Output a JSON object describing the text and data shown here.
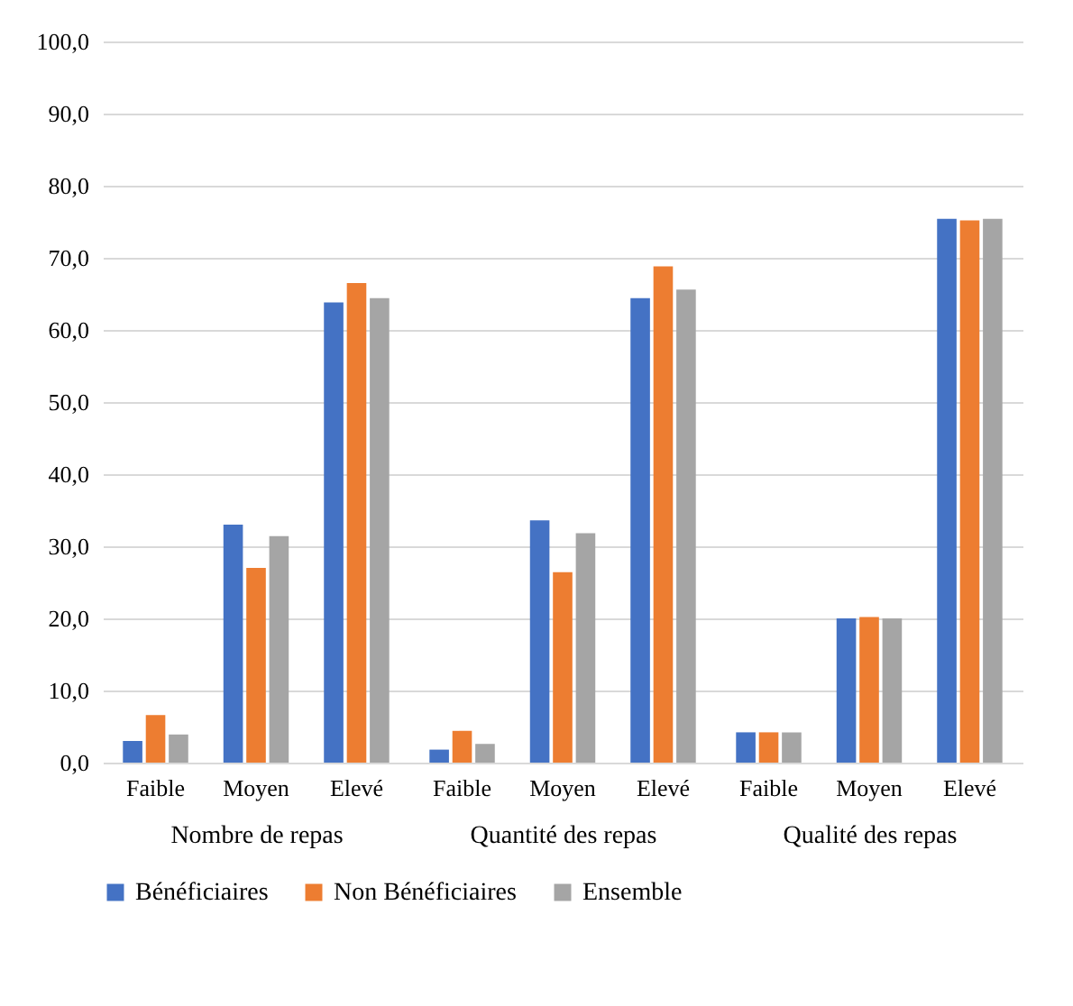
{
  "chart_data": [
    {
      "type": "bar",
      "xlabel": "Nombre de repas",
      "categories": [
        "Faible",
        "Moyen",
        "Elevé"
      ],
      "series": [
        {
          "name": "Bénéficiaires",
          "color": "#4472c4",
          "values": [
            3.0,
            33.0,
            63.8
          ]
        },
        {
          "name": "Non Bénéficiaires",
          "color": "#ed7d31",
          "values": [
            6.6,
            27.0,
            66.5
          ]
        },
        {
          "name": "Ensemble",
          "color": "#a5a5a5",
          "values": [
            3.9,
            31.4,
            64.4
          ]
        }
      ],
      "ylim": [
        0,
        100
      ],
      "yticks": [
        {
          "value": 0,
          "label": "0,0"
        },
        {
          "value": 10,
          "label": "10,0"
        },
        {
          "value": 20,
          "label": "20,0"
        },
        {
          "value": 30,
          "label": "30,0"
        },
        {
          "value": 40,
          "label": "40,0"
        },
        {
          "value": 50,
          "label": "50,0"
        },
        {
          "value": 60,
          "label": "60,0"
        },
        {
          "value": 70,
          "label": "70,0"
        },
        {
          "value": 80,
          "label": "80,0"
        },
        {
          "value": 90,
          "label": "90,0"
        },
        {
          "value": 100,
          "label": "100,0"
        }
      ],
      "grid": "y",
      "legend": "bottom"
    },
    {
      "type": "bar",
      "xlabel": "Quantité des repas",
      "categories": [
        "Faible",
        "Moyen",
        "Elevé"
      ],
      "series": [
        {
          "name": "Bénéficiaires",
          "color": "#4472c4",
          "values": [
            1.8,
            33.6,
            64.4
          ]
        },
        {
          "name": "Non Bénéficiaires",
          "color": "#ed7d31",
          "values": [
            4.4,
            26.4,
            68.8
          ]
        },
        {
          "name": "Ensemble",
          "color": "#a5a5a5",
          "values": [
            2.6,
            31.8,
            65.6
          ]
        }
      ],
      "ylim": [
        0,
        100
      ],
      "yticks": [
        {
          "value": 0,
          "label": null
        },
        {
          "value": 10,
          "label": null
        },
        {
          "value": 20,
          "label": null
        },
        {
          "value": 30,
          "label": null
        },
        {
          "value": 40,
          "label": null
        },
        {
          "value": 50,
          "label": null
        },
        {
          "value": 60,
          "label": null
        },
        {
          "value": 70,
          "label": null
        },
        {
          "value": 80,
          "label": null
        },
        {
          "value": 90,
          "label": null
        },
        {
          "value": 100,
          "label": null
        }
      ],
      "grid": "y",
      "legend": "bottom",
      "tick_labels": "x"
    },
    {
      "type": "bar",
      "xlabel": "Qualité des repas",
      "categories": [
        "Faible",
        "Moyen",
        "Elevé"
      ],
      "series": [
        {
          "name": "Bénéficiaires",
          "color": "#4472c4",
          "values": [
            4.2,
            20.0,
            75.4
          ]
        },
        {
          "name": "Non Bénéficiaires",
          "color": "#ed7d31",
          "values": [
            4.2,
            20.2,
            75.2
          ]
        },
        {
          "name": "Ensemble",
          "color": "#a5a5a5",
          "values": [
            4.2,
            20.0,
            75.4
          ]
        }
      ],
      "ylim": [
        0,
        100
      ],
      "yticks": [
        {
          "value": 0,
          "label": null
        },
        {
          "value": 10,
          "label": null
        },
        {
          "value": 20,
          "label": null
        },
        {
          "value": 30,
          "label": null
        },
        {
          "value": 40,
          "label": null
        },
        {
          "value": 50,
          "label": null
        },
        {
          "value": 60,
          "label": null
        },
        {
          "value": 70,
          "label": null
        },
        {
          "value": 80,
          "label": null
        },
        {
          "value": 90,
          "label": null
        },
        {
          "value": 100,
          "label": null
        }
      ],
      "grid": "y",
      "legend": "bottom",
      "tick_labels": "x"
    }
  ]
}
